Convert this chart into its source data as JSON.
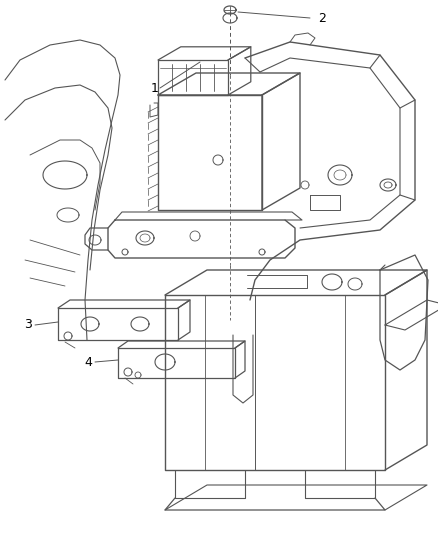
{
  "bg_color": "#ffffff",
  "line_color": "#555555",
  "label_color": "#000000",
  "fig_width": 4.38,
  "fig_height": 5.33,
  "dpi": 100
}
